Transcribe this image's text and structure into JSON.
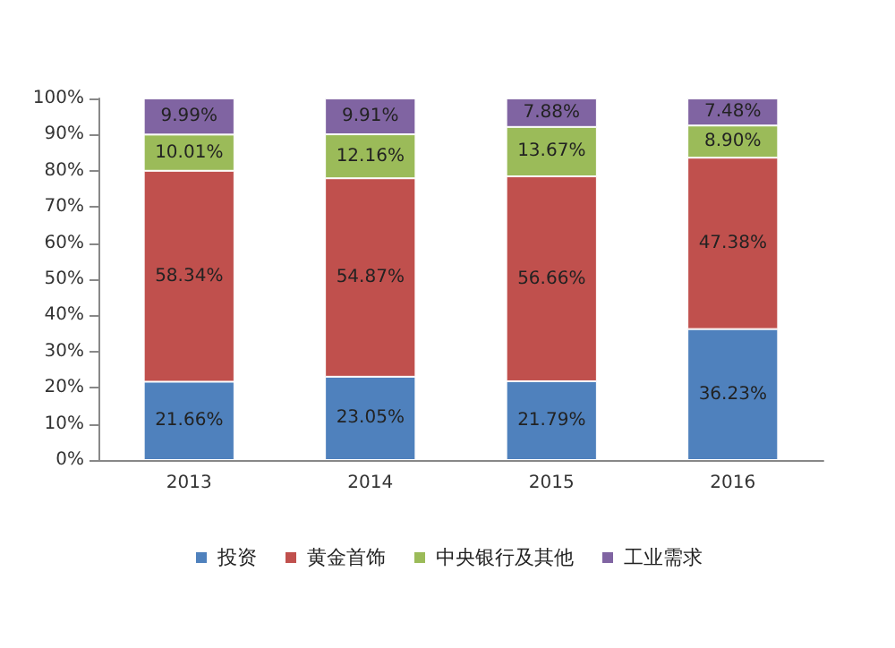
{
  "chart_data": {
    "type": "bar",
    "stacked": true,
    "categories": [
      "2013",
      "2014",
      "2015",
      "2016"
    ],
    "series": [
      {
        "name": "投资",
        "color": "#4f81bd",
        "values": [
          21.66,
          23.05,
          21.79,
          36.23
        ],
        "value_labels": [
          "21.66%",
          "23.05%",
          "21.79%",
          "36.23%"
        ]
      },
      {
        "name": "黄金首饰",
        "color": "#c0504d",
        "values": [
          58.34,
          54.87,
          56.66,
          47.38
        ],
        "value_labels": [
          "58.34%",
          "54.87%",
          "56.66%",
          "47.38%"
        ]
      },
      {
        "name": "中央银行及其他",
        "color": "#9bbb59",
        "values": [
          10.01,
          12.16,
          13.67,
          8.9
        ],
        "value_labels": [
          "10.01%",
          "12.16%",
          "13.67%",
          "8.90%"
        ]
      },
      {
        "name": "工业需求",
        "color": "#8064a2",
        "values": [
          9.99,
          9.91,
          7.88,
          7.48
        ],
        "value_labels": [
          "9.99%",
          "9.91%",
          "7.88%",
          "7.48%"
        ]
      }
    ],
    "ylim": [
      0,
      100
    ],
    "yticks": [
      {
        "value": 0,
        "label": "0%"
      },
      {
        "value": 10,
        "label": "10%"
      },
      {
        "value": 20,
        "label": "20%"
      },
      {
        "value": 30,
        "label": "30%"
      },
      {
        "value": 40,
        "label": "40%"
      },
      {
        "value": 50,
        "label": "50%"
      },
      {
        "value": 60,
        "label": "60%"
      },
      {
        "value": 70,
        "label": "70%"
      },
      {
        "value": 80,
        "label": "80%"
      },
      {
        "value": 90,
        "label": "90%"
      },
      {
        "value": 100,
        "label": "100%"
      }
    ],
    "legend": "bottom",
    "grid": false
  }
}
